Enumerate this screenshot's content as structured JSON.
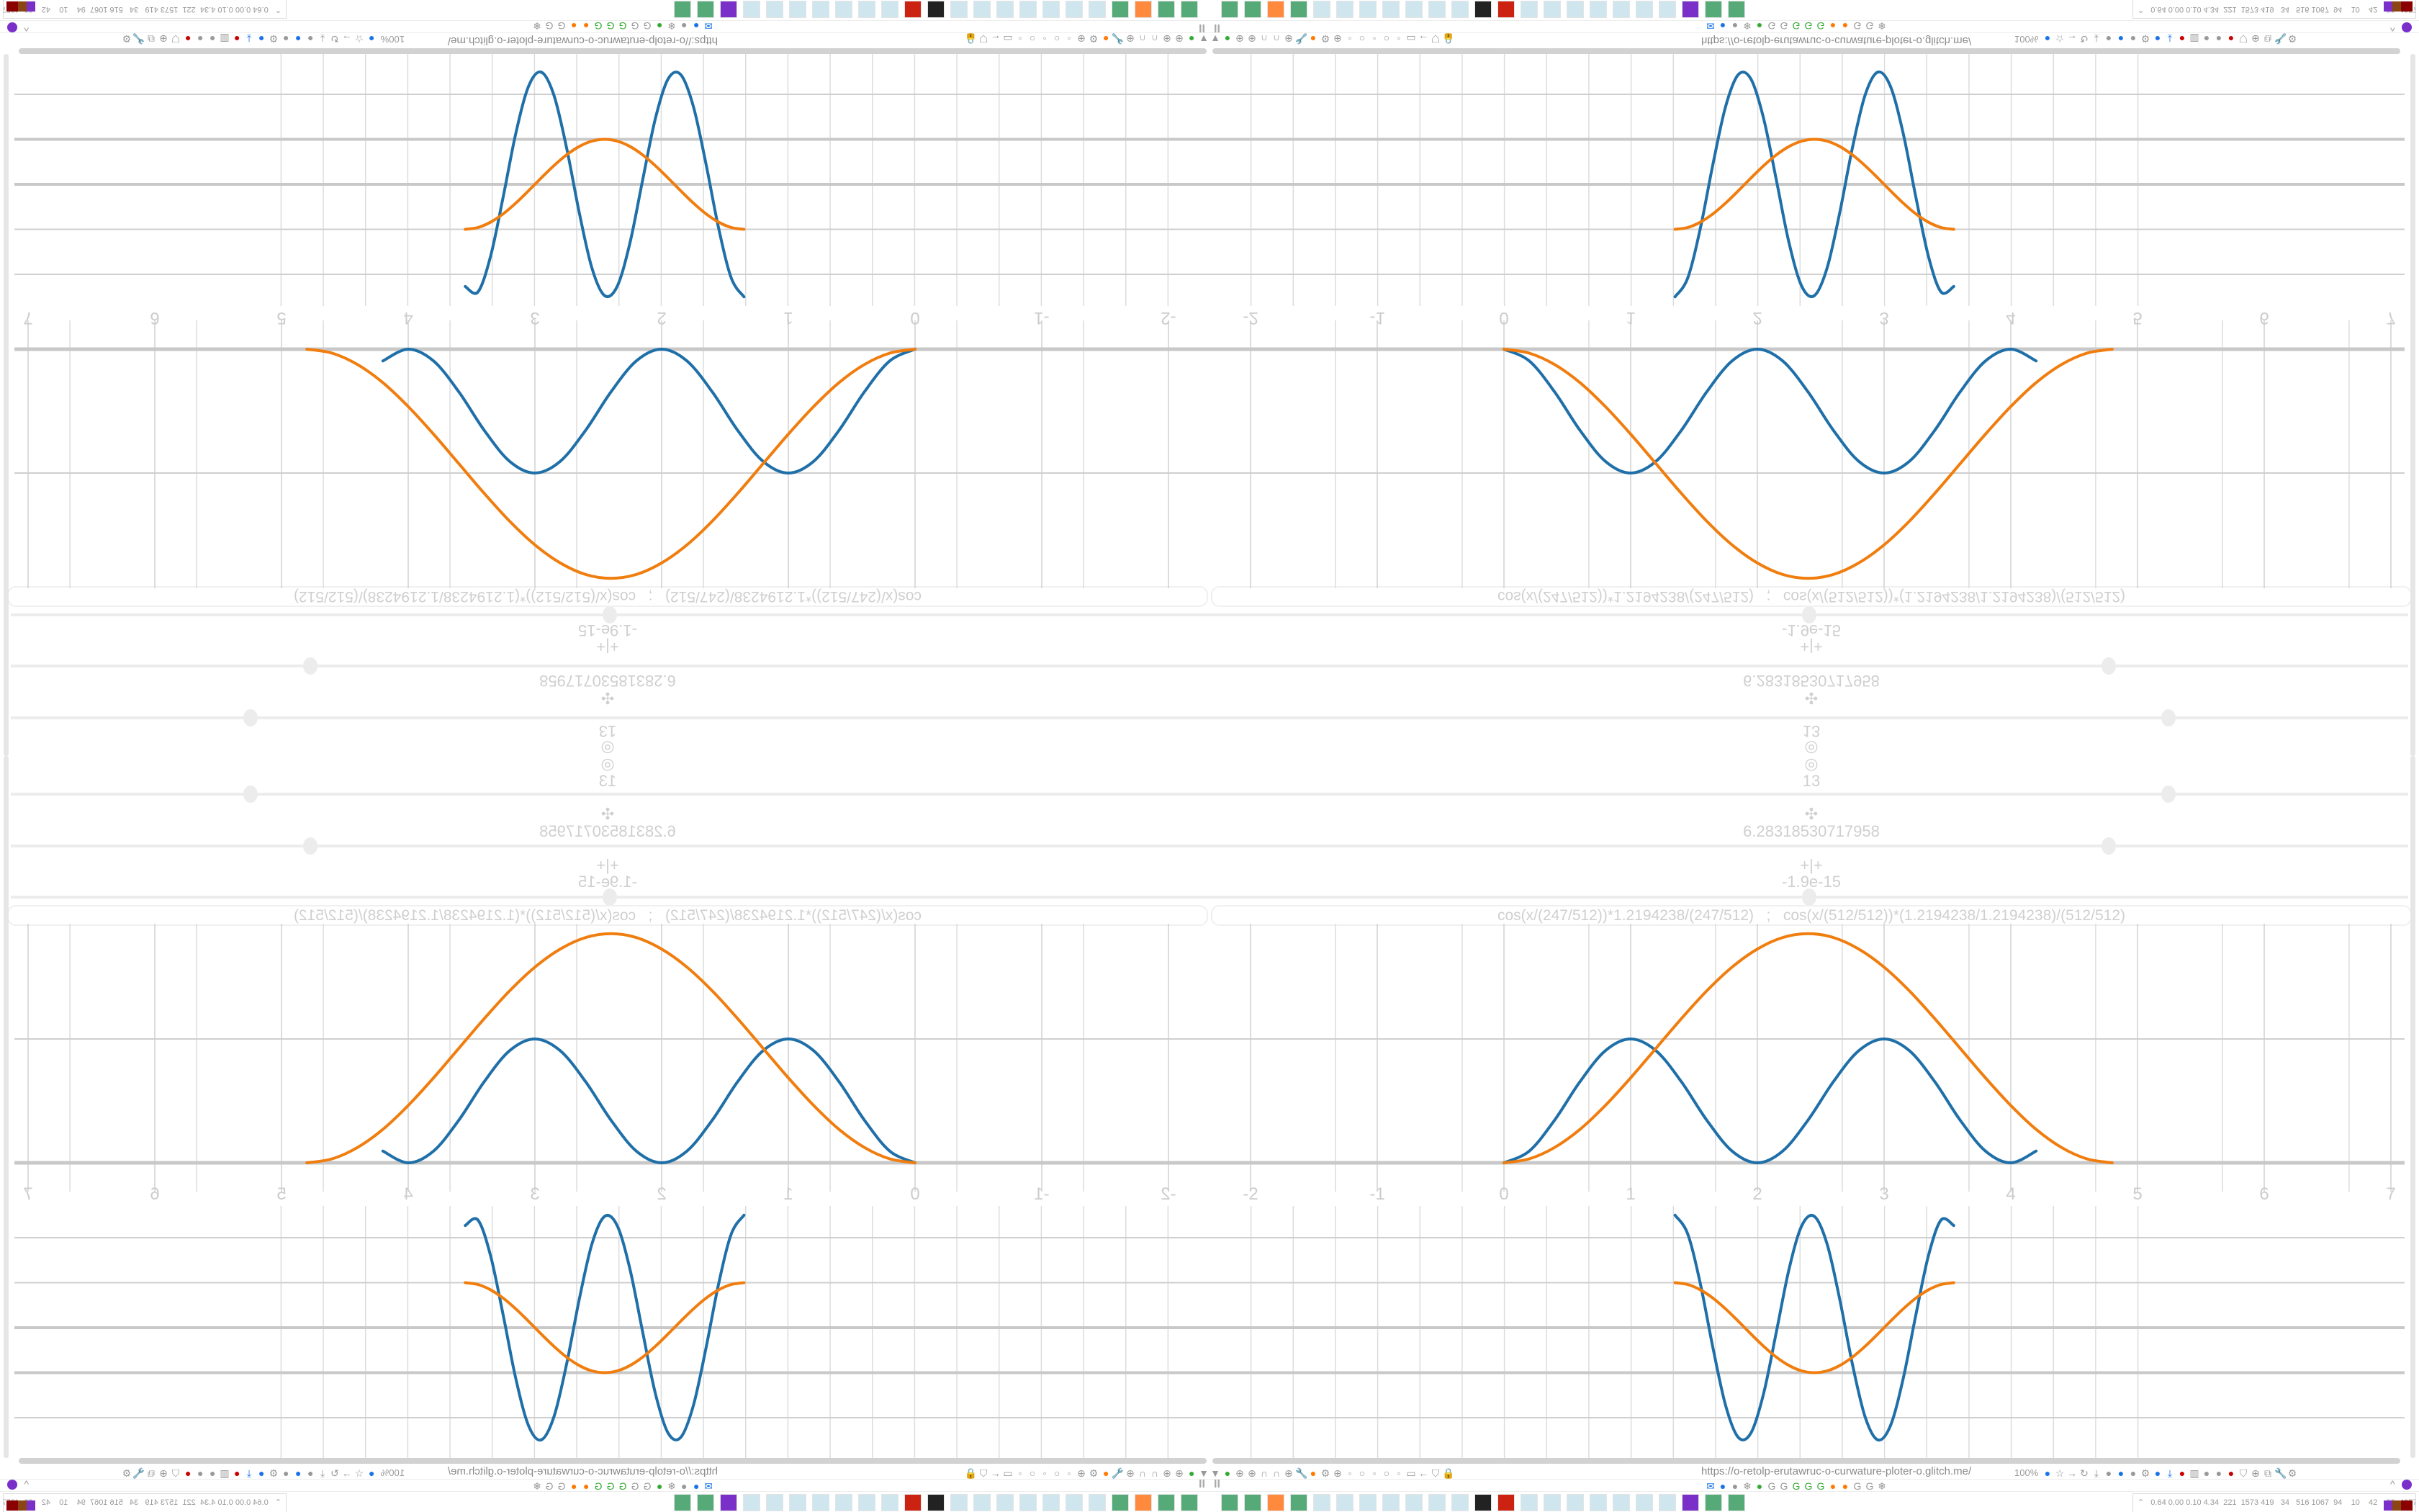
{
  "browser": {
    "url": "https://o-retolp-erutawruc-o-curwature-ploter-o.glitch.me/",
    "zoom_label": "100%",
    "pause_label": "II",
    "left_toolbar_icons": [
      "pin-icon",
      "extension-green-icon",
      "globe-icon",
      "globe-icon",
      "headphones-icon",
      "headphones-icon",
      "globe-icon",
      "wrench-icon",
      "firefox-icon",
      "gear-icon",
      "globe-icon",
      "dot-icon",
      "circle-icon",
      "dot-icon",
      "circle-icon",
      "dot-icon",
      "folder-icon",
      "back-arrow-icon",
      "shield-icon",
      "lock-icon"
    ],
    "right_toolbar_icons": [
      "translate-icon",
      "star-icon",
      "forward-icon",
      "reload-icon",
      "download-icon",
      "color-picker-icon",
      "translate-blue-icon",
      "mouse-icon",
      "gear-icon",
      "plus-blue-icon",
      "download-blue-icon",
      "red-circle-icon",
      "trash-icon",
      "share-icon",
      "archive-icon",
      "ublock-icon",
      "shield-grey-icon",
      "globe-grey-icon",
      "puzzle-icon",
      "wrench-icon",
      "gear-icon"
    ],
    "bookmark_icons": [
      "mail-icon",
      "blue-circle-icon",
      "grey-circle-icon",
      "snowflake-icon",
      "green-leaf-icon",
      "google-icon",
      "google-icon",
      "google-green-icon",
      "google-green-icon",
      "google-green-icon",
      "orange-gear-icon",
      "orange-gear-icon",
      "google-icon",
      "google-icon",
      "snowflake-icon"
    ],
    "colors": {
      "accent_blue": "#1565c0",
      "firefox_orange": "#ff7a00"
    }
  },
  "taskbar": {
    "apps": [
      "monitor-settings-icon",
      "terminal-icon",
      "firefox-icon",
      "floppy-64-icon",
      "notepad-icon",
      "notepad-icon",
      "notepad-icon",
      "notepad-icon",
      "notepad-icon",
      "notepad-icon",
      "notepad-icon",
      "inkscape-icon",
      "red-gear-icon",
      "calculator-icon",
      "calculator-icon",
      "calculator-icon",
      "calculator-icon",
      "calculator-icon",
      "calculator-icon",
      "calculator-icon",
      "purple-app-icon",
      "document-icon",
      "document-icon"
    ],
    "sysmon_text": "0.64 0.00 0.10 4.34  221  1573 419   34   516 1067  94    10    42    39  43575511"
  },
  "controls": {
    "sliders": [
      {
        "icon": "◎",
        "icon_name": "target-icon",
        "value": "13",
        "fraction": 0.8
      },
      {
        "icon": "✣",
        "icon_name": "move-icon",
        "value": "6.28318530717958",
        "fraction": 0.75
      },
      {
        "icon": "+|+",
        "icon_name": "split-icon",
        "value": "-1.9e-15",
        "fraction": 0.5
      }
    ],
    "formula": "cos(x/(247/512))*1.2194238/(247/512)   ;   cos(x/(512/512))*(1.2194238/1.2194238)/(512/512)"
  },
  "chart_data": [
    {
      "type": "line",
      "x_ticks": [
        "-2",
        "-1",
        "0",
        "1",
        "2",
        "3",
        "4",
        "5",
        "6",
        "7"
      ],
      "xlim": [
        -2.35,
        7.1
      ],
      "ylim": [
        -0.32,
        1.93
      ],
      "grid": true,
      "series": [
        {
          "color": "#1f6fa8",
          "x_start": 0,
          "x_step": 0.2,
          "values": [
            0,
            0.095,
            0.345,
            0.655,
            0.905,
            1,
            0.905,
            0.655,
            0.345,
            0.095,
            0,
            0.095,
            0.345,
            0.655,
            0.905,
            1,
            0.905,
            0.655,
            0.345,
            0.095,
            0,
            0.095
          ]
        },
        {
          "color": "#f07d0e",
          "x_start": 0,
          "x_step": 0.2,
          "values": [
            0,
            0.032,
            0.124,
            0.27,
            0.463,
            0.686,
            0.925,
            1.164,
            1.388,
            1.58,
            1.726,
            1.819,
            1.85,
            1.819,
            1.726,
            1.58,
            1.388,
            1.164,
            0.925,
            0.686,
            0.463,
            0.27,
            0.124,
            0.032,
            0
          ]
        }
      ]
    },
    {
      "type": "line",
      "xlim": [
        -2.35,
        7.1
      ],
      "ylim": [
        -2.9,
        2.7
      ],
      "grid": true,
      "series": [
        {
          "color": "#1f6fa8",
          "x_start": 1.35,
          "x_step": 0.1,
          "values": [
            2.5,
            2.085,
            0.977,
            -0.456,
            -1.736,
            -2.44,
            -2.336,
            -1.455,
            -0.092,
            1.302,
            2.264,
            2.473,
            1.861,
            0.63,
            -0.81,
            -1.981,
            -2.493,
            -2.18,
            -1.143,
            0.274,
            1.6,
            2.393,
            2.27
          ]
        },
        {
          "color": "#f07d0e",
          "x_start": 1.35,
          "x_step": 0.1,
          "values": [
            1,
            0.96,
            0.841,
            0.655,
            0.415,
            0.142,
            -0.142,
            -0.415,
            -0.655,
            -0.841,
            -0.96,
            -1,
            -0.96,
            -0.841,
            -0.655,
            -0.415,
            -0.142,
            0.142,
            0.415,
            0.655,
            0.841,
            0.96,
            1
          ]
        }
      ]
    }
  ]
}
